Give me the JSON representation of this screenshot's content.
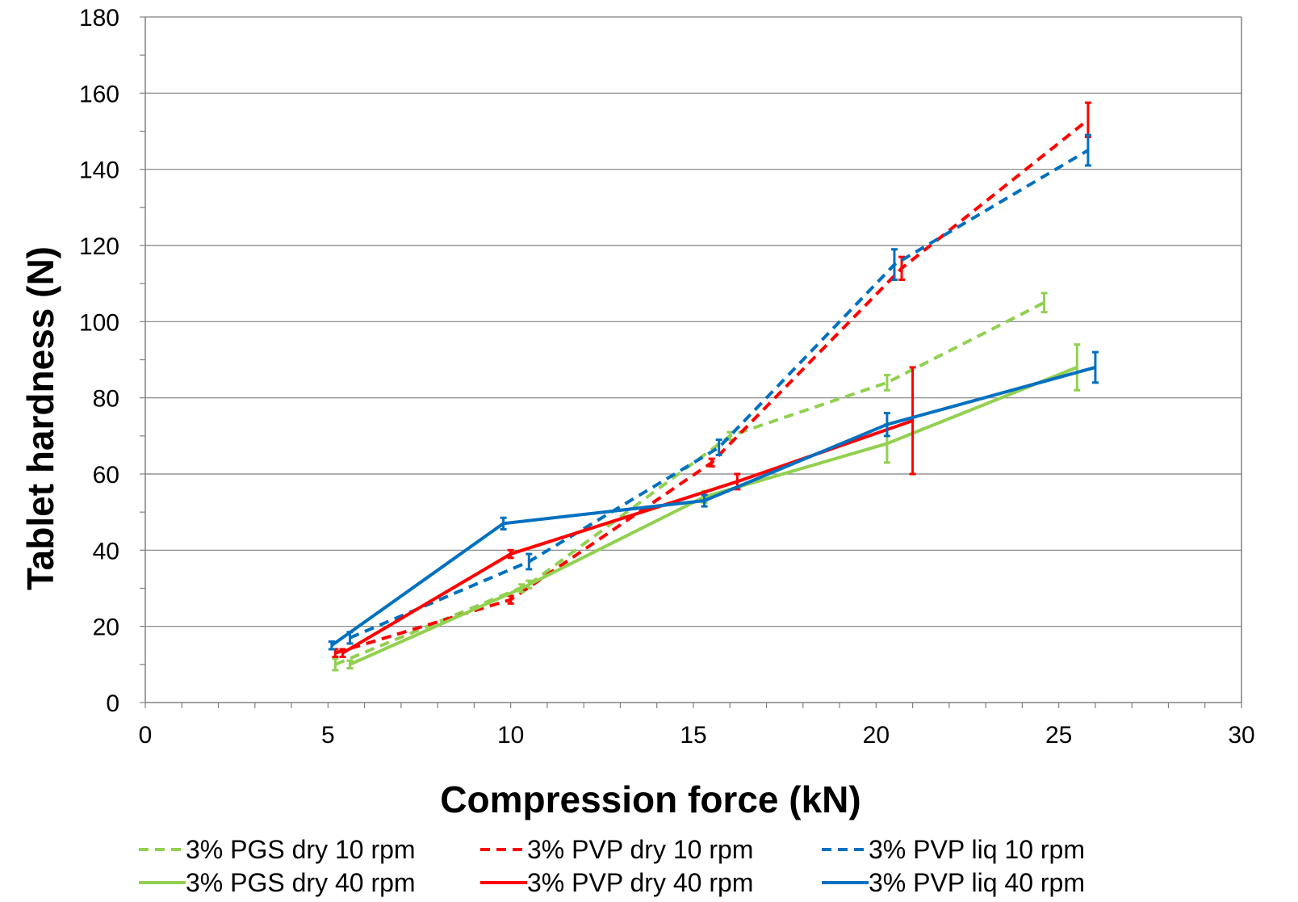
{
  "chart_data": {
    "type": "line",
    "xlabel": "Compression force (kN)",
    "ylabel": "Tablet hardness (N)",
    "xlim": [
      0,
      30
    ],
    "ylim": [
      0,
      180
    ],
    "xticks": [
      0,
      5,
      10,
      15,
      20,
      25,
      30
    ],
    "yticks": [
      0,
      20,
      40,
      60,
      80,
      100,
      120,
      140,
      160,
      180
    ],
    "grid": "horizontal",
    "legend_position": "bottom",
    "series": [
      {
        "name": "3% PGS dry 10 rpm",
        "color": "#92D050",
        "dashed": true,
        "points": [
          {
            "x": 5.2,
            "y": 10,
            "err": 1.5
          },
          {
            "x": 10.5,
            "y": 31,
            "err": 1
          },
          {
            "x": 16.0,
            "y": 70,
            "err": 1
          },
          {
            "x": 20.3,
            "y": 84,
            "err": 2
          },
          {
            "x": 24.6,
            "y": 105,
            "err": 2.5
          }
        ]
      },
      {
        "name": "3% PVP dry 10 rpm",
        "color": "#FF0000",
        "dashed": true,
        "points": [
          {
            "x": 5.2,
            "y": 13,
            "err": 1
          },
          {
            "x": 10.0,
            "y": 27,
            "err": 1
          },
          {
            "x": 15.5,
            "y": 63,
            "err": 1
          },
          {
            "x": 20.7,
            "y": 114,
            "err": 3
          },
          {
            "x": 25.8,
            "y": 153,
            "err": 4.5
          }
        ]
      },
      {
        "name": "3% PVP liq 10 rpm",
        "color": "#0070C0",
        "dashed": true,
        "points": [
          {
            "x": 5.6,
            "y": 17,
            "err": 1.5
          },
          {
            "x": 10.5,
            "y": 37,
            "err": 2
          },
          {
            "x": 15.7,
            "y": 67,
            "err": 2
          },
          {
            "x": 20.5,
            "y": 115,
            "err": 4
          },
          {
            "x": 25.8,
            "y": 145,
            "err": 4
          }
        ]
      },
      {
        "name": "3% PGS dry 40 rpm",
        "color": "#92D050",
        "dashed": false,
        "points": [
          {
            "x": 5.6,
            "y": 10,
            "err": 1
          },
          {
            "x": 10.3,
            "y": 30,
            "err": 1
          },
          {
            "x": 15.3,
            "y": 54,
            "err": 1.5
          },
          {
            "x": 20.3,
            "y": 68,
            "err": 5
          },
          {
            "x": 25.5,
            "y": 88,
            "err": 6
          }
        ]
      },
      {
        "name": "3% PVP dry 40 rpm",
        "color": "#FF0000",
        "dashed": false,
        "points": [
          {
            "x": 5.4,
            "y": 13,
            "err": 1
          },
          {
            "x": 10.0,
            "y": 39,
            "err": 1
          },
          {
            "x": 16.2,
            "y": 58,
            "err": 2
          },
          {
            "x": 21.0,
            "y": 74,
            "err": 14
          }
        ]
      },
      {
        "name": "3% PVP liq 40 rpm",
        "color": "#0070C0",
        "dashed": false,
        "points": [
          {
            "x": 5.1,
            "y": 15,
            "err": 1
          },
          {
            "x": 9.8,
            "y": 47,
            "err": 1.5
          },
          {
            "x": 15.3,
            "y": 53,
            "err": 1.5
          },
          {
            "x": 20.3,
            "y": 73,
            "err": 3
          },
          {
            "x": 26.0,
            "y": 88,
            "err": 4
          }
        ]
      }
    ]
  }
}
